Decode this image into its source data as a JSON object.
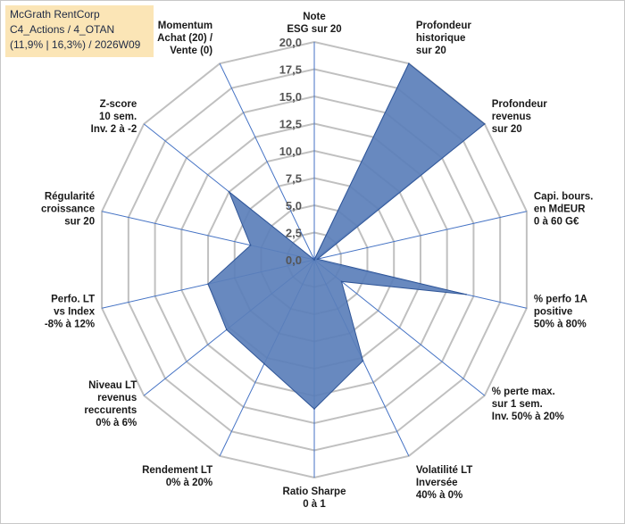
{
  "title_box": {
    "line1": "McGrath RentCorp",
    "line2": "C4_Actions / 4_OTAN",
    "line3": "(11,9% | 16,3%) / 2026W09"
  },
  "chart_data": {
    "type": "radar",
    "rmax": 20,
    "ticks": [
      "0,0",
      "2,5",
      "5,0",
      "7,5",
      "10,0",
      "12,5",
      "15,0",
      "17,5",
      "20,0"
    ],
    "tick_values": [
      0,
      2.5,
      5,
      7.5,
      10,
      12.5,
      15,
      17.5,
      20
    ],
    "axes": [
      {
        "lines": [
          "Note",
          "ESG sur 20"
        ]
      },
      {
        "lines": [
          "Profondeur",
          "historique",
          "sur 20"
        ]
      },
      {
        "lines": [
          "Profondeur",
          "revenus",
          "sur 20"
        ]
      },
      {
        "lines": [
          "Capi. bours.",
          "en MdEUR",
          "0 à 60 G€"
        ]
      },
      {
        "lines": [
          "% perfo 1A",
          "positive",
          "50% à 80%"
        ]
      },
      {
        "lines": [
          "% perte max.",
          "sur 1 sem.",
          "Inv. 50% à 20%"
        ]
      },
      {
        "lines": [
          "Volatilité LT",
          "Inversée",
          "40% à 0%"
        ]
      },
      {
        "lines": [
          "Ratio Sharpe",
          "0 à 1"
        ]
      },
      {
        "lines": [
          "Rendement LT",
          "0% à 20%"
        ]
      },
      {
        "lines": [
          "Niveau LT",
          "revenus",
          "reccurents",
          "0% à 6%"
        ]
      },
      {
        "lines": [
          "Perfo. LT",
          "vs Index",
          "-8% à 12%"
        ]
      },
      {
        "lines": [
          "Régularité",
          "croissance",
          "sur 20"
        ]
      },
      {
        "lines": [
          "Z-score",
          "10 sem.",
          "Inv. 2 à -2"
        ]
      },
      {
        "lines": [
          "Momentum",
          "Achat (20) /",
          "Vente (0)"
        ]
      }
    ],
    "series": [
      {
        "values": [
          0,
          20,
          20,
          0.3,
          14.3,
          3.2,
          10.3,
          13.7,
          10.6,
          10.3,
          10.0,
          6.0,
          10.0,
          0
        ]
      }
    ],
    "fill": "#5b7fba",
    "stroke": "#2f5597",
    "grid_color": "#c0c0c0",
    "spoke_color": "#4472c4"
  }
}
